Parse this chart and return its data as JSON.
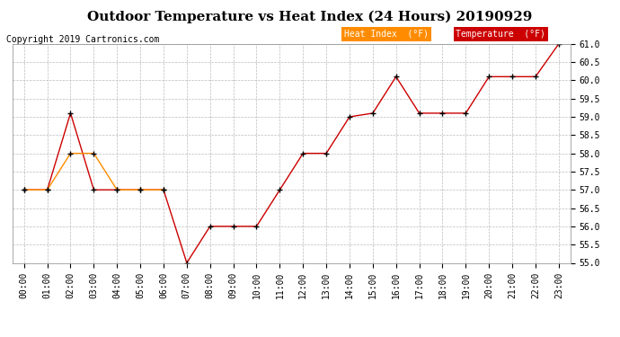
{
  "title": "Outdoor Temperature vs Heat Index (24 Hours) 20190929",
  "copyright": "Copyright 2019 Cartronics.com",
  "hours": [
    "00:00",
    "01:00",
    "02:00",
    "03:00",
    "04:00",
    "05:00",
    "06:00",
    "07:00",
    "08:00",
    "09:00",
    "10:00",
    "11:00",
    "12:00",
    "13:00",
    "14:00",
    "15:00",
    "16:00",
    "17:00",
    "18:00",
    "19:00",
    "20:00",
    "21:00",
    "22:00",
    "23:00"
  ],
  "temperature": [
    57.0,
    57.0,
    59.1,
    57.0,
    57.0,
    57.0,
    57.0,
    55.0,
    56.0,
    56.0,
    56.0,
    57.0,
    58.0,
    58.0,
    59.0,
    59.1,
    60.1,
    59.1,
    59.1,
    59.1,
    60.1,
    60.1,
    60.1,
    61.0
  ],
  "heat_index": [
    57.0,
    57.0,
    58.0,
    58.0,
    57.0,
    57.0,
    57.0,
    null,
    null,
    null,
    null,
    null,
    null,
    null,
    null,
    null,
    null,
    null,
    null,
    null,
    null,
    null,
    null,
    null
  ],
  "heat_index_color": "#ff8c00",
  "temperature_color": "#cc0000",
  "ylim": [
    55.0,
    61.0
  ],
  "yticks": [
    55.0,
    55.5,
    56.0,
    56.5,
    57.0,
    57.5,
    58.0,
    58.5,
    59.0,
    59.5,
    60.0,
    60.5,
    61.0
  ],
  "background_color": "#ffffff",
  "grid_color": "#bbbbbb",
  "legend_heat_bg": "#ff8c00",
  "legend_temp_bg": "#cc0000",
  "legend_text_color": "#ffffff",
  "title_fontsize": 11,
  "copyright_fontsize": 7,
  "tick_fontsize": 7
}
